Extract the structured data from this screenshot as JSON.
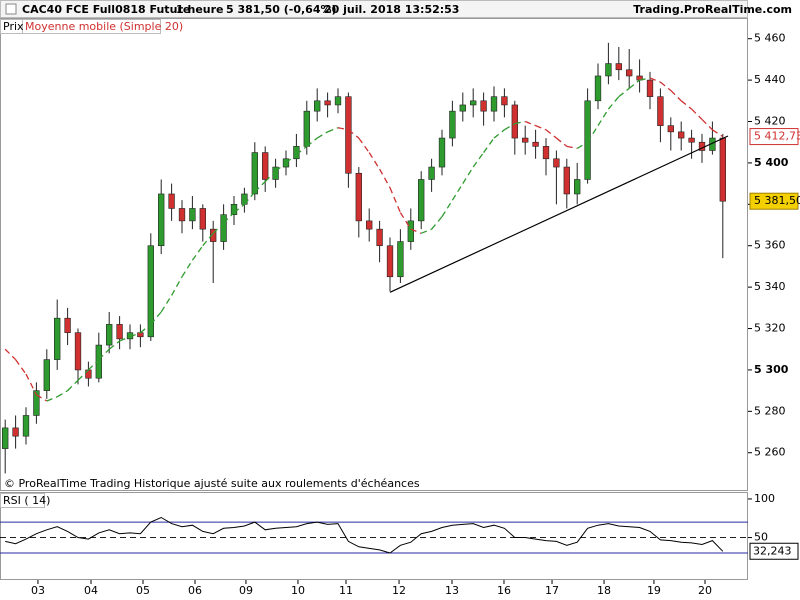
{
  "header": {
    "instrument": "CAC40 FCE Full0818 Future",
    "period": "1 heure",
    "quote": "5 381,50 (-0,64%)",
    "datetime": "20 juil. 2018 13:52:53",
    "site": "Trading.ProRealTime.com"
  },
  "chart_data": [
    {
      "type": "candlestick",
      "legend": [
        "Prix",
        "Moyenne mobile (Simple 20)"
      ],
      "note": "© ProRealTime Trading  Historique ajusté suite aux roulements d'échéances",
      "up_color": "#2e9b2e",
      "down_color": "#d03030",
      "ma_up_color": "#2e9b2e",
      "ma_down_color": "#d03030",
      "xlim": [
        0,
        70
      ],
      "ylim": [
        5242,
        5470
      ],
      "yticks": [
        {
          "value": 5260,
          "label": "5 260"
        },
        {
          "value": 5280,
          "label": "5 280"
        },
        {
          "value": 5300,
          "label": "5 300"
        },
        {
          "value": 5320,
          "label": "5 320"
        },
        {
          "value": 5340,
          "label": "5 340"
        },
        {
          "value": 5360,
          "label": "5 360"
        },
        {
          "value": 5380,
          "label": "5 380"
        },
        {
          "value": 5400,
          "label": "5 400"
        },
        {
          "value": 5420,
          "label": "5 420"
        },
        {
          "value": 5440,
          "label": "5 440"
        },
        {
          "value": 5460,
          "label": "5 460"
        }
      ],
      "candles": [
        [
          5262,
          5276,
          5250,
          5272
        ],
        [
          5272,
          5278,
          5262,
          5268
        ],
        [
          5268,
          5282,
          5264,
          5278
        ],
        [
          5278,
          5294,
          5274,
          5290
        ],
        [
          5290,
          5310,
          5286,
          5305
        ],
        [
          5305,
          5334,
          5300,
          5325
        ],
        [
          5325,
          5330,
          5312,
          5318
        ],
        [
          5318,
          5320,
          5293,
          5300
        ],
        [
          5300,
          5304,
          5292,
          5296
        ],
        [
          5296,
          5318,
          5294,
          5312
        ],
        [
          5312,
          5328,
          5308,
          5322
        ],
        [
          5322,
          5326,
          5310,
          5315
        ],
        [
          5315,
          5322,
          5310,
          5318
        ],
        [
          5318,
          5322,
          5311,
          5316
        ],
        [
          5316,
          5366,
          5314,
          5360
        ],
        [
          5360,
          5392,
          5356,
          5385
        ],
        [
          5385,
          5390,
          5372,
          5378
        ],
        [
          5378,
          5382,
          5366,
          5372
        ],
        [
          5372,
          5384,
          5368,
          5378
        ],
        [
          5378,
          5380,
          5362,
          5368
        ],
        [
          5368,
          5372,
          5342,
          5362
        ],
        [
          5362,
          5380,
          5358,
          5375
        ],
        [
          5375,
          5384,
          5370,
          5380
        ],
        [
          5380,
          5388,
          5376,
          5385
        ],
        [
          5385,
          5410,
          5382,
          5405
        ],
        [
          5405,
          5408,
          5386,
          5392
        ],
        [
          5392,
          5402,
          5388,
          5398
        ],
        [
          5398,
          5406,
          5394,
          5402
        ],
        [
          5402,
          5414,
          5398,
          5408
        ],
        [
          5408,
          5430,
          5404,
          5425
        ],
        [
          5425,
          5436,
          5420,
          5430
        ],
        [
          5430,
          5434,
          5422,
          5428
        ],
        [
          5428,
          5436,
          5424,
          5432
        ],
        [
          5432,
          5434,
          5388,
          5395
        ],
        [
          5395,
          5398,
          5364,
          5372
        ],
        [
          5372,
          5378,
          5362,
          5368
        ],
        [
          5368,
          5372,
          5352,
          5360
        ],
        [
          5360,
          5364,
          5338,
          5345
        ],
        [
          5345,
          5368,
          5342,
          5362
        ],
        [
          5362,
          5378,
          5358,
          5372
        ],
        [
          5372,
          5396,
          5368,
          5392
        ],
        [
          5392,
          5402,
          5386,
          5398
        ],
        [
          5398,
          5416,
          5394,
          5412
        ],
        [
          5412,
          5430,
          5408,
          5425
        ],
        [
          5425,
          5434,
          5420,
          5428
        ],
        [
          5428,
          5436,
          5422,
          5430
        ],
        [
          5430,
          5434,
          5418,
          5425
        ],
        [
          5425,
          5437,
          5420,
          5432
        ],
        [
          5432,
          5436,
          5422,
          5428
        ],
        [
          5428,
          5430,
          5404,
          5412
        ],
        [
          5412,
          5418,
          5404,
          5410
        ],
        [
          5410,
          5416,
          5402,
          5408
        ],
        [
          5408,
          5412,
          5394,
          5402
        ],
        [
          5402,
          5406,
          5380,
          5398
        ],
        [
          5398,
          5402,
          5378,
          5385
        ],
        [
          5385,
          5400,
          5380,
          5392
        ],
        [
          5392,
          5436,
          5390,
          5430
        ],
        [
          5430,
          5448,
          5426,
          5442
        ],
        [
          5442,
          5458,
          5438,
          5448
        ],
        [
          5448,
          5456,
          5440,
          5445
        ],
        [
          5445,
          5455,
          5436,
          5442
        ],
        [
          5442,
          5450,
          5434,
          5440
        ],
        [
          5440,
          5444,
          5426,
          5432
        ],
        [
          5432,
          5436,
          5410,
          5418
        ],
        [
          5418,
          5422,
          5406,
          5415
        ],
        [
          5415,
          5420,
          5406,
          5412
        ],
        [
          5412,
          5416,
          5402,
          5410
        ],
        [
          5410,
          5414,
          5400,
          5406
        ],
        [
          5406,
          5420,
          5404,
          5412
        ],
        [
          5412,
          5414,
          5354,
          5381.5
        ]
      ],
      "ma": [
        5310,
        5305,
        5298,
        5288,
        5285,
        5287,
        5290,
        5295,
        5300,
        5305,
        5310,
        5314,
        5316,
        5318,
        5322,
        5328,
        5336,
        5345,
        5353,
        5360,
        5366,
        5371,
        5376,
        5380,
        5386,
        5391,
        5396,
        5400,
        5404,
        5408,
        5412,
        5415,
        5417,
        5416,
        5412,
        5405,
        5397,
        5388,
        5376,
        5368,
        5366,
        5368,
        5374,
        5382,
        5390,
        5398,
        5405,
        5412,
        5416,
        5419,
        5420,
        5418,
        5416,
        5412,
        5408,
        5407,
        5410,
        5418,
        5426,
        5432,
        5436,
        5440,
        5441,
        5439,
        5435,
        5430,
        5426,
        5421,
        5416,
        5412.73
      ],
      "ma_label": {
        "value": 5412.73,
        "label": "5 412,73"
      },
      "last_price": {
        "value": 5381.5,
        "label": "5 381,50"
      },
      "trendline": {
        "x": [
          37.5,
          70
        ],
        "y": [
          5337.5,
          5413
        ]
      }
    },
    {
      "type": "line",
      "title": "RSI ( 14)",
      "color": "#000000",
      "ylim": [
        -5,
        109
      ],
      "yticks": [
        100,
        50
      ],
      "levels": [
        70,
        30
      ],
      "values": [
        45,
        42,
        48,
        55,
        60,
        64,
        58,
        50,
        48,
        56,
        60,
        55,
        56,
        55,
        70,
        76,
        68,
        64,
        66,
        58,
        55,
        62,
        63,
        65,
        70,
        60,
        62,
        63,
        64,
        68,
        70,
        67,
        68,
        45,
        38,
        36,
        34,
        30,
        40,
        44,
        55,
        58,
        63,
        66,
        67,
        68,
        63,
        66,
        62,
        50,
        50,
        48,
        46,
        45,
        40,
        44,
        62,
        66,
        68,
        65,
        64,
        63,
        58,
        47,
        46,
        44,
        43,
        41,
        46,
        32.243
      ],
      "last_label": {
        "value": 32.243,
        "label": "32,243"
      },
      "xlim": [
        0,
        70
      ],
      "xticks": [
        {
          "value": 3.65,
          "label": "03"
        },
        {
          "value": 8.75,
          "label": "04"
        },
        {
          "value": 13.75,
          "label": "05"
        },
        {
          "value": 18.75,
          "label": "06"
        },
        {
          "value": 23.65,
          "label": "09"
        },
        {
          "value": 28.65,
          "label": "10"
        },
        {
          "value": 33.27,
          "label": "11"
        },
        {
          "value": 38.37,
          "label": "12"
        },
        {
          "value": 43.46,
          "label": "13"
        },
        {
          "value": 48.46,
          "label": "16"
        },
        {
          "value": 53.08,
          "label": "17"
        },
        {
          "value": 58.08,
          "label": "18"
        },
        {
          "value": 62.88,
          "label": "19"
        },
        {
          "value": 67.79,
          "label": "20"
        }
      ]
    }
  ]
}
